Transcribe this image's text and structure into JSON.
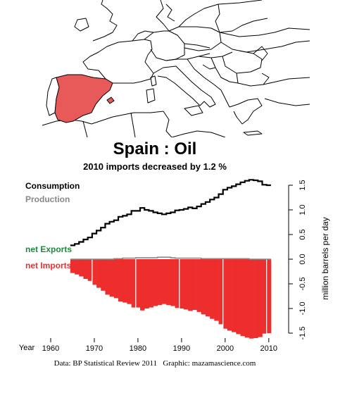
{
  "map": {
    "highlight_color": "#e85a5a",
    "line_color": "#000000"
  },
  "titles": {
    "main": "Spain :  Oil",
    "sub": "2010 imports decreased by 1.2 %"
  },
  "legend": {
    "consumption": "Consumption",
    "production": "Production",
    "net_exports": "net Exports",
    "net_imports": "net Imports"
  },
  "colors": {
    "consumption": "#000000",
    "production": "#888888",
    "net_exports": "#1e8a3e",
    "net_imports": "#ee2d2d"
  },
  "source": {
    "data": "Data: BP Statistical Review 2011",
    "graphic": "Graphic: mazamascience.com"
  },
  "chart_data": {
    "type": "area",
    "xlabel": "Year",
    "ylabel": "million barrels per day",
    "xlim": [
      1960,
      2011
    ],
    "ylim": [
      -1.6,
      1.6
    ],
    "x_ticks": [
      1960,
      1970,
      1980,
      1990,
      2000,
      2010
    ],
    "y_ticks": [
      1.5,
      1.0,
      0.5,
      0.0,
      -0.5,
      -1.0,
      -1.5
    ],
    "y_tick_labels": [
      "1.5",
      "1.0",
      "0.5",
      "0.0",
      "-0.5",
      "-1.0",
      "-1.5"
    ],
    "years": [
      1965,
      1966,
      1967,
      1968,
      1969,
      1970,
      1971,
      1972,
      1973,
      1974,
      1975,
      1976,
      1977,
      1978,
      1979,
      1980,
      1981,
      1982,
      1983,
      1984,
      1985,
      1986,
      1987,
      1988,
      1989,
      1990,
      1991,
      1992,
      1993,
      1994,
      1995,
      1996,
      1997,
      1998,
      1999,
      2000,
      2001,
      2002,
      2003,
      2004,
      2005,
      2006,
      2007,
      2008,
      2009,
      2010
    ],
    "series": [
      {
        "name": "Consumption",
        "values": [
          0.28,
          0.31,
          0.35,
          0.4,
          0.44,
          0.52,
          0.58,
          0.64,
          0.72,
          0.76,
          0.79,
          0.86,
          0.88,
          0.91,
          0.98,
          0.98,
          1.04,
          1.0,
          0.98,
          0.95,
          0.93,
          0.91,
          0.93,
          0.95,
          0.99,
          1.0,
          1.02,
          1.05,
          1.03,
          1.07,
          1.12,
          1.16,
          1.21,
          1.25,
          1.32,
          1.41,
          1.45,
          1.48,
          1.52,
          1.56,
          1.59,
          1.61,
          1.6,
          1.58,
          1.51,
          1.5
        ]
      },
      {
        "name": "Production",
        "values": [
          0.0,
          0.0,
          0.0,
          0.0,
          0.0,
          0.0,
          0.0,
          0.0,
          0.0,
          0.0,
          0.01,
          0.01,
          0.02,
          0.02,
          0.02,
          0.03,
          0.03,
          0.03,
          0.03,
          0.03,
          0.04,
          0.04,
          0.04,
          0.03,
          0.02,
          0.02,
          0.02,
          0.02,
          0.02,
          0.02,
          0.01,
          0.01,
          0.01,
          0.01,
          0.01,
          0.01,
          0.01,
          0.01,
          0.01,
          0.01,
          0.01,
          0.0,
          0.0,
          0.0,
          0.0,
          0.0
        ]
      },
      {
        "name": "net Imports",
        "values": [
          -0.28,
          -0.31,
          -0.35,
          -0.4,
          -0.44,
          -0.52,
          -0.58,
          -0.64,
          -0.72,
          -0.76,
          -0.79,
          -0.86,
          -0.88,
          -0.91,
          -0.98,
          -0.98,
          -1.04,
          -1.0,
          -0.98,
          -0.95,
          -0.93,
          -0.91,
          -0.93,
          -0.95,
          -0.99,
          -1.0,
          -1.02,
          -1.05,
          -1.03,
          -1.07,
          -1.12,
          -1.16,
          -1.21,
          -1.25,
          -1.32,
          -1.41,
          -1.45,
          -1.48,
          -1.52,
          -1.56,
          -1.59,
          -1.61,
          -1.6,
          -1.58,
          -1.51,
          -1.5
        ]
      }
    ]
  }
}
